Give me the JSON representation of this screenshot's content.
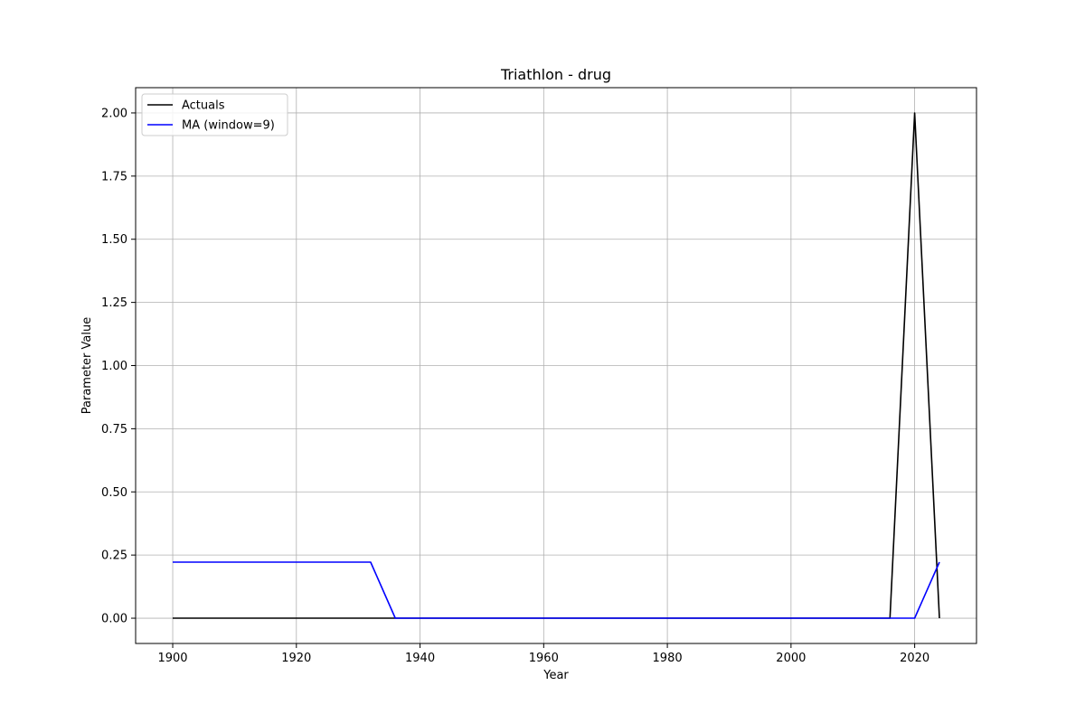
{
  "chart_data": {
    "type": "line",
    "title": "Triathlon - drug",
    "xlabel": "Year",
    "ylabel": "Parameter Value",
    "xlim": [
      1894,
      2030
    ],
    "ylim": [
      -0.1,
      2.1
    ],
    "xticks": [
      1900,
      1920,
      1940,
      1960,
      1980,
      2000,
      2020
    ],
    "yticks": [
      0.0,
      0.25,
      0.5,
      0.75,
      1.0,
      1.25,
      1.5,
      1.75,
      2.0
    ],
    "grid": true,
    "legend_position": "top-left",
    "series": [
      {
        "name": "Actuals",
        "color": "#000000",
        "x": [
          1900,
          1904,
          1908,
          1912,
          1916,
          1920,
          1924,
          1928,
          1932,
          1936,
          1940,
          1944,
          1948,
          1952,
          1956,
          1960,
          1964,
          1968,
          1972,
          1976,
          1980,
          1984,
          1988,
          1992,
          1996,
          2000,
          2004,
          2008,
          2012,
          2016,
          2020,
          2024
        ],
        "y": [
          0,
          0,
          0,
          0,
          0,
          0,
          0,
          0,
          0,
          0,
          0,
          0,
          0,
          0,
          0,
          0,
          0,
          0,
          0,
          0,
          0,
          0,
          0,
          0,
          0,
          0,
          0,
          0,
          0,
          0,
          2,
          0
        ]
      },
      {
        "name": "MA (window=9)",
        "color": "#0000ff",
        "x": [
          1900,
          1904,
          1908,
          1912,
          1916,
          1920,
          1924,
          1928,
          1932,
          1936,
          1940,
          1944,
          1948,
          1952,
          1956,
          1960,
          1964,
          1968,
          1972,
          1976,
          1980,
          1984,
          1988,
          1992,
          1996,
          2000,
          2004,
          2008,
          2012,
          2016,
          2020,
          2024
        ],
        "y": [
          0.222,
          0.222,
          0.222,
          0.222,
          0.222,
          0.222,
          0.222,
          0.222,
          0.222,
          0,
          0,
          0,
          0,
          0,
          0,
          0,
          0,
          0,
          0,
          0,
          0,
          0,
          0,
          0,
          0,
          0,
          0,
          0,
          0,
          0,
          0,
          0.222
        ]
      }
    ]
  }
}
